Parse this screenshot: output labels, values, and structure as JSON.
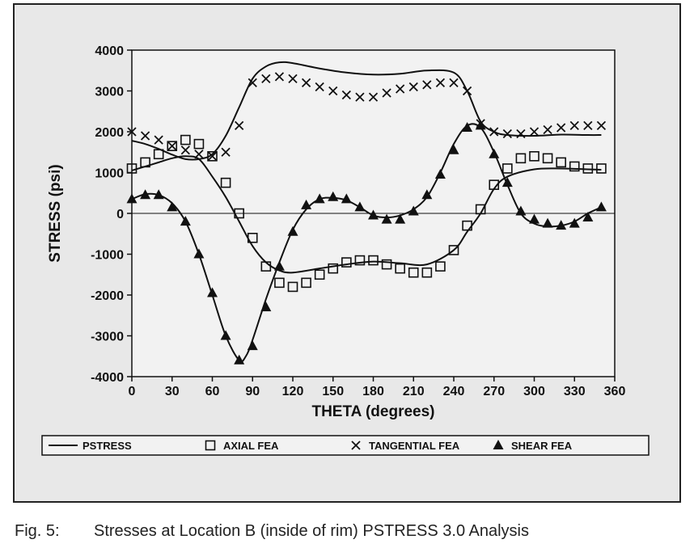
{
  "caption": {
    "number": "Fig. 5:",
    "text": "Stresses at Location B (inside of rim) PSTRESS 3.0 Analysis"
  },
  "chart_data": {
    "type": "line",
    "xlabel": "THETA (degrees)",
    "ylabel": "STRESS (psi)",
    "xlim": [
      0,
      360
    ],
    "ylim": [
      -4000,
      4000
    ],
    "x_ticks": [
      0,
      30,
      60,
      90,
      120,
      150,
      180,
      210,
      240,
      270,
      300,
      330,
      360
    ],
    "y_ticks": [
      -4000,
      -3000,
      -2000,
      -1000,
      0,
      1000,
      2000,
      3000,
      4000
    ],
    "grid": false,
    "zero_line": true,
    "legend_position": "bottom",
    "colors": {
      "series": "#111111",
      "frame_bg": "#e8e8e8",
      "plot_bg": "#f2f2f2"
    },
    "series": [
      {
        "name": "PSTRESS",
        "marker": "line",
        "curves": [
          {
            "x": [
              0,
              10,
              20,
              30,
              40,
              50,
              60,
              70,
              80,
              90,
              100,
              110,
              120,
              140,
              160,
              180,
              200,
              220,
              240,
              250,
              260,
              270,
              280,
              300,
              320,
              340,
              350
            ],
            "y": [
              1780,
              1700,
              1580,
              1440,
              1330,
              1330,
              1450,
              1900,
              2600,
              3300,
              3600,
              3700,
              3680,
              3550,
              3450,
              3400,
              3420,
              3500,
              3450,
              3000,
              2250,
              2000,
              1920,
              1900,
              1930,
              1920,
              1920
            ]
          },
          {
            "x": [
              0,
              10,
              20,
              30,
              40,
              50,
              60,
              70,
              80,
              90,
              100,
              110,
              120,
              140,
              160,
              180,
              200,
              220,
              240,
              250,
              260,
              270,
              280,
              300,
              320,
              340,
              350
            ],
            "y": [
              1050,
              1150,
              1250,
              1350,
              1400,
              1330,
              900,
              400,
              -200,
              -800,
              -1200,
              -1400,
              -1450,
              -1350,
              -1250,
              -1180,
              -1220,
              -1250,
              -900,
              -450,
              0,
              600,
              900,
              1080,
              1100,
              1080,
              1070
            ]
          },
          {
            "x": [
              0,
              10,
              20,
              30,
              40,
              50,
              60,
              70,
              80,
              85,
              90,
              100,
              110,
              120,
              130,
              140,
              150,
              160,
              170,
              180,
              190,
              200,
              210,
              220,
              230,
              240,
              250,
              260,
              270,
              280,
              290,
              300,
              310,
              320,
              330,
              340,
              350
            ],
            "y": [
              350,
              470,
              450,
              250,
              -200,
              -1000,
              -2000,
              -3000,
              -3600,
              -3500,
              -3100,
              -2100,
              -1200,
              -400,
              100,
              350,
              380,
              320,
              150,
              -50,
              -100,
              -50,
              100,
              400,
              1000,
              1700,
              2150,
              2100,
              1500,
              700,
              0,
              -250,
              -320,
              -300,
              -200,
              0,
              150
            ]
          }
        ]
      },
      {
        "name": "AXIAL FEA",
        "marker": "square",
        "x": [
          0,
          10,
          20,
          30,
          40,
          50,
          60,
          70,
          80,
          90,
          100,
          110,
          120,
          130,
          140,
          150,
          160,
          170,
          180,
          190,
          200,
          210,
          220,
          230,
          240,
          250,
          260,
          270,
          280,
          290,
          300,
          310,
          320,
          330,
          340,
          350
        ],
        "y": [
          1100,
          1250,
          1450,
          1650,
          1800,
          1700,
          1400,
          750,
          0,
          -600,
          -1300,
          -1700,
          -1800,
          -1700,
          -1500,
          -1350,
          -1200,
          -1150,
          -1150,
          -1250,
          -1350,
          -1450,
          -1450,
          -1300,
          -900,
          -300,
          100,
          700,
          1100,
          1350,
          1400,
          1350,
          1250,
          1150,
          1100,
          1100
        ]
      },
      {
        "name": "TANGENTIAL FEA",
        "marker": "x",
        "x": [
          0,
          10,
          20,
          30,
          40,
          50,
          60,
          70,
          80,
          90,
          100,
          110,
          120,
          130,
          140,
          150,
          160,
          170,
          180,
          190,
          200,
          210,
          220,
          230,
          240,
          250,
          260,
          270,
          280,
          290,
          300,
          310,
          320,
          330,
          340,
          350
        ],
        "y": [
          2000,
          1900,
          1800,
          1650,
          1550,
          1450,
          1400,
          1500,
          2150,
          3200,
          3300,
          3350,
          3300,
          3200,
          3100,
          3000,
          2900,
          2850,
          2850,
          2950,
          3050,
          3100,
          3150,
          3200,
          3200,
          3000,
          2200,
          2000,
          1950,
          1950,
          2000,
          2050,
          2100,
          2150,
          2150,
          2150
        ]
      },
      {
        "name": "SHEAR FEA",
        "marker": "triangle",
        "x": [
          0,
          10,
          20,
          30,
          40,
          50,
          60,
          70,
          80,
          90,
          100,
          110,
          120,
          130,
          140,
          150,
          160,
          170,
          180,
          190,
          200,
          210,
          220,
          230,
          240,
          250,
          260,
          270,
          280,
          290,
          300,
          310,
          320,
          330,
          340,
          350
        ],
        "y": [
          350,
          450,
          450,
          150,
          -200,
          -1000,
          -1950,
          -3000,
          -3600,
          -3250,
          -2300,
          -1300,
          -450,
          200,
          350,
          400,
          350,
          150,
          -50,
          -150,
          -150,
          50,
          450,
          950,
          1550,
          2100,
          2150,
          1450,
          750,
          50,
          -150,
          -250,
          -300,
          -250,
          -100,
          150
        ]
      }
    ]
  }
}
